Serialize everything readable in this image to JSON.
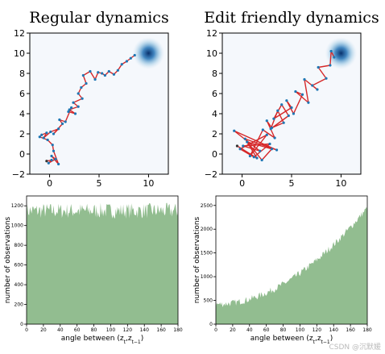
{
  "chart_data": [
    {
      "type": "line",
      "title": "Regular dynamics",
      "xlim": [
        -2,
        12
      ],
      "ylim": [
        -2,
        12
      ],
      "xticks": [
        "0",
        "5",
        "10"
      ],
      "yticks": [
        "−2",
        "0",
        "2",
        "4",
        "6",
        "8",
        "10",
        "12"
      ],
      "target": {
        "x": 10,
        "y": 10
      },
      "colors": {
        "path": "#d62728",
        "points": "#1f77b4",
        "target": "#08306b",
        "background": "#f5f8fc"
      },
      "x": [
        -0.3,
        0.2,
        -0.1,
        0.6,
        0.2,
        0.9,
        0.4,
        0.3,
        -0.2,
        -1.0,
        -0.8,
        -0.3,
        -0.6,
        0.1,
        0.9,
        0.4,
        1.3,
        1.0,
        1.6,
        2.2,
        1.9,
        2.6,
        2.0,
        2.9,
        2.4,
        3.3,
        2.9,
        3.2,
        3.7,
        3.4,
        4.1,
        4.6,
        4.9,
        5.3,
        5.6,
        6.0,
        6.5,
        6.9,
        7.3,
        7.8,
        8.2,
        8.6
      ],
      "y": [
        -0.7,
        -0.6,
        -0.9,
        -0.5,
        -0.2,
        -1.0,
        0.3,
        0.9,
        1.4,
        1.7,
        1.9,
        2.1,
        1.6,
        2.2,
        2.5,
        2.0,
        3.0,
        3.4,
        3.2,
        4.6,
        4.2,
        4.0,
        4.4,
        4.7,
        5.1,
        5.5,
        6.0,
        6.6,
        7.0,
        7.8,
        8.2,
        7.4,
        8.1,
        8.0,
        7.8,
        8.2,
        7.9,
        8.3,
        8.9,
        9.2,
        9.5,
        9.8
      ]
    },
    {
      "type": "line",
      "title": "Edit friendly dynamics",
      "xlim": [
        -2,
        12
      ],
      "ylim": [
        -2,
        12
      ],
      "xticks": [
        "0",
        "5",
        "10"
      ],
      "yticks": [
        "−2",
        "0",
        "2",
        "4",
        "6",
        "8",
        "10",
        "12"
      ],
      "target": {
        "x": 10,
        "y": 10
      },
      "colors": {
        "path": "#d62728",
        "points": "#1f77b4",
        "target": "#08306b",
        "background": "#f5f8fc"
      },
      "x": [
        -0.5,
        1.5,
        0.5,
        3.0,
        2.0,
        0.3,
        3.5,
        -0.8,
        1.8,
        0.1,
        2.8,
        1.2,
        -0.2,
        2.5,
        0.8,
        2.1,
        3.3,
        2.5,
        3.0,
        4.2,
        3.6,
        2.9,
        4.7,
        4.0,
        3.2,
        5.0,
        4.5,
        5.2,
        6.1,
        5.4,
        6.7,
        6.3,
        7.6,
        7.1,
        8.5,
        7.7,
        8.9,
        9.0,
        9.3
      ],
      "y": [
        0.8,
        -0.4,
        1.2,
        0.5,
        -0.6,
        1.5,
        0.4,
        2.3,
        0.3,
        0.8,
        1.0,
        -0.3,
        0.5,
        1.9,
        -0.2,
        2.4,
        1.6,
        3.3,
        2.6,
        3.1,
        4.3,
        2.5,
        3.8,
        4.9,
        3.5,
        4.6,
        5.3,
        4.0,
        5.9,
        6.2,
        5.1,
        7.4,
        6.4,
        6.8,
        7.5,
        8.6,
        8.8,
        10.2,
        9.6
      ]
    },
    {
      "type": "histogram",
      "xlabel": "angle between (z_t, z_{t−1})",
      "ylabel": "number of observations",
      "xlim": [
        0,
        180
      ],
      "ylim": [
        0,
        1300
      ],
      "xticks": [
        "0",
        "20",
        "40",
        "60",
        "80",
        "100",
        "120",
        "140",
        "160",
        "180"
      ],
      "yticks": [
        "0",
        "200",
        "400",
        "600",
        "800",
        "1000",
        "1200"
      ],
      "mean_count": 1150,
      "noise": 80,
      "color": "#7fb27c"
    },
    {
      "type": "histogram",
      "xlabel": "angle between (z_t, z_{t−1})",
      "ylabel": "number of observations",
      "xlim": [
        0,
        180
      ],
      "ylim": [
        0,
        2700
      ],
      "xticks": [
        "0",
        "20",
        "40",
        "60",
        "80",
        "100",
        "120",
        "140",
        "160",
        "180"
      ],
      "yticks": [
        "0",
        "500",
        "1000",
        "1500",
        "2000",
        "2500"
      ],
      "start_count": 420,
      "end_count": 2450,
      "noise": 70,
      "color": "#7fb27c"
    }
  ],
  "watermark": "CSDN @沉默媛"
}
